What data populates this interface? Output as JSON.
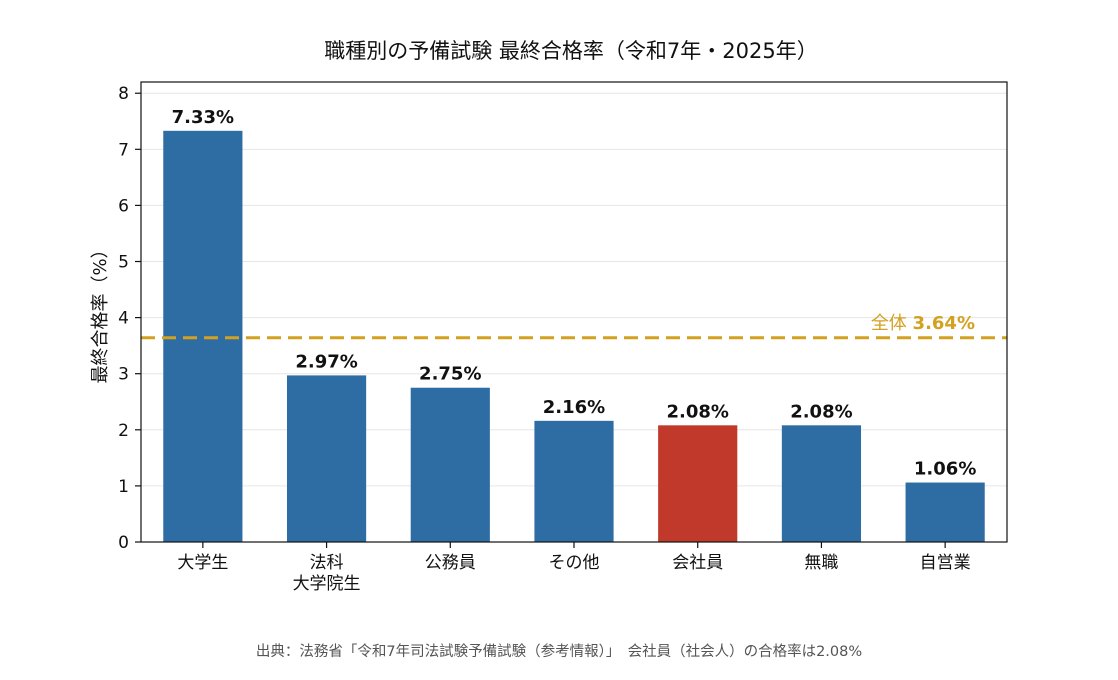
{
  "chart_data": {
    "type": "bar",
    "title": "職種別の予備試験 最終合格率（令和7年・2025年）",
    "ylabel": "最終合格率（%）",
    "xlabel": "",
    "ylim": [
      0,
      8.2
    ],
    "yticks": [
      "0",
      "1",
      "2",
      "3",
      "4",
      "5",
      "6",
      "7",
      "8"
    ],
    "grid": "horizontal",
    "categories": [
      [
        "大学生"
      ],
      [
        "法科",
        "大学院生"
      ],
      [
        "公務員"
      ],
      [
        "その他"
      ],
      [
        "会社員"
      ],
      [
        "無職"
      ],
      [
        "自営業"
      ]
    ],
    "values": [
      7.33,
      2.97,
      2.75,
      2.16,
      2.08,
      2.08,
      1.06
    ],
    "data_labels": [
      "7.33%",
      "2.97%",
      "2.75%",
      "2.16%",
      "2.08%",
      "2.08%",
      "1.06%"
    ],
    "highlight_index": 4,
    "reference_line": {
      "value": 3.64,
      "label_prefix": "全体 ",
      "label_value": "3.64%"
    },
    "colors": {
      "bar": "#2e6da4",
      "highlight": "#c0392b",
      "reference": "#d4a020",
      "grid": "#e6e6e6"
    },
    "note": "出典：法務省「令和7年司法試験予備試験（参考情報）」　会社員（社会人）の合格率は2.08%"
  }
}
